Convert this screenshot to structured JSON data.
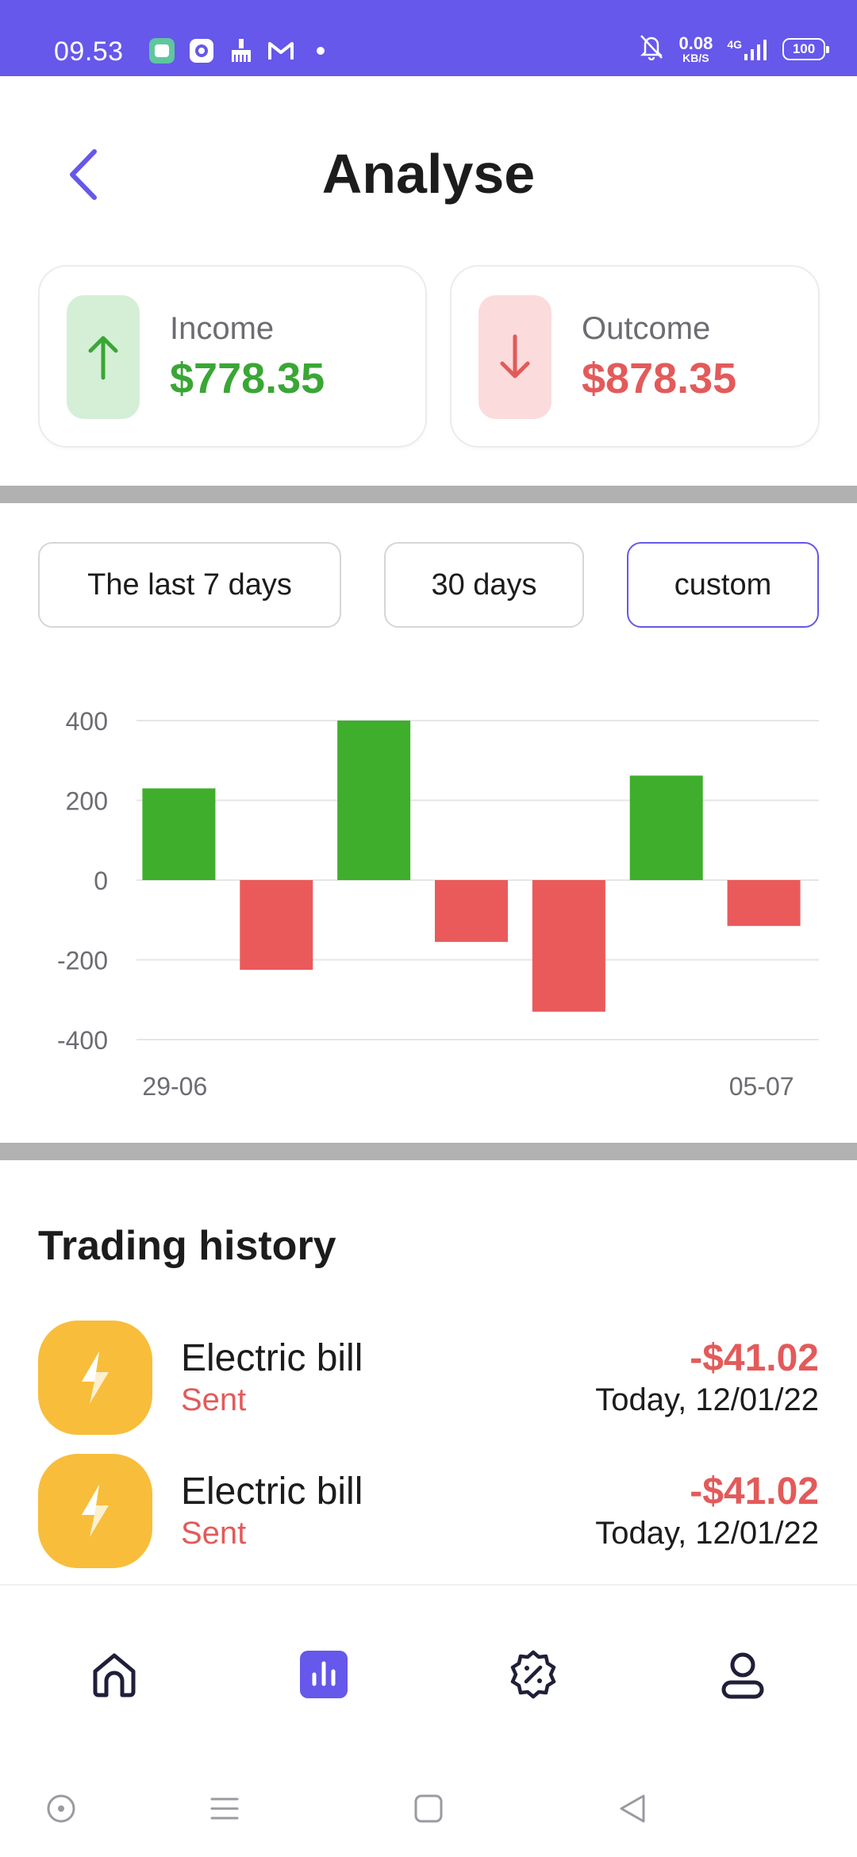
{
  "status_bar": {
    "time": "09.53",
    "net_speed": "0.08",
    "net_unit": "KB/S",
    "network": "4G",
    "battery": "100"
  },
  "header": {
    "title": "Analyse",
    "back_icon": "chevron-left-icon"
  },
  "summary": {
    "income": {
      "label": "Income",
      "amount": "$778.35",
      "icon": "arrow-up-icon",
      "color": "#3aa635"
    },
    "outcome": {
      "label": "Outcome",
      "amount": "$878.35",
      "icon": "arrow-down-icon",
      "color": "#e35a5a"
    }
  },
  "filters": {
    "last7": "The last 7 days",
    "days30": "30 days",
    "custom": "custom",
    "active": "custom"
  },
  "chart_data": {
    "type": "bar",
    "categories": [
      "29-06",
      "",
      "",
      "",
      "",
      "",
      "05-07"
    ],
    "values": [
      230,
      -225,
      400,
      -155,
      -330,
      262,
      -115
    ],
    "ylim": [
      -400,
      400
    ],
    "yticks": [
      400,
      200,
      0,
      -200,
      -400
    ],
    "x_tick_labels": [
      "29-06",
      "05-07"
    ],
    "positive_color": "#3fae2c",
    "negative_color": "#eb5a5a",
    "grid": true,
    "legend": "none"
  },
  "history": {
    "title": "Trading history",
    "items": [
      {
        "name": "Electric bill",
        "status": "Sent",
        "amount": "-$41.02",
        "date": "Today, 12/01/22",
        "icon": "lightning-icon"
      },
      {
        "name": "Electric bill",
        "status": "Sent",
        "amount": "-$41.02",
        "date": "Today, 12/01/22",
        "icon": "lightning-icon"
      }
    ]
  },
  "bottom_nav": {
    "items": [
      "home-icon",
      "chart-icon",
      "discount-badge-icon",
      "profile-icon"
    ],
    "active": "chart-icon",
    "accent": "#6558ea"
  }
}
